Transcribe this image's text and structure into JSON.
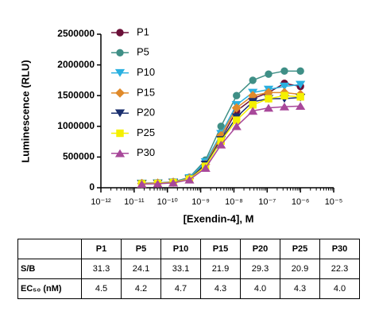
{
  "chart_data": {
    "type": "line",
    "xlabel": "[Exendin-4], M",
    "ylabel": "Luminescence (RLU)",
    "xscale": "log",
    "xlim": [
      1e-12,
      1e-05
    ],
    "xticks": [
      {
        "value": 1e-12,
        "label": "10⁻¹²"
      },
      {
        "value": 1e-11,
        "label": "10⁻¹¹"
      },
      {
        "value": 1e-10,
        "label": "10⁻¹⁰"
      },
      {
        "value": 1e-09,
        "label": "10⁻⁹"
      },
      {
        "value": 1e-08,
        "label": "10⁻⁸"
      },
      {
        "value": 1e-07,
        "label": "10⁻⁷"
      },
      {
        "value": 1e-06,
        "label": "10⁻⁶"
      },
      {
        "value": 1e-05,
        "label": "10⁻⁵"
      }
    ],
    "ylim": [
      0,
      2500000
    ],
    "yticks": [
      0,
      500000,
      1000000,
      1500000,
      2000000,
      2500000
    ],
    "legend": "top-left",
    "x": [
      1.7e-11,
      5.1e-11,
      1.5e-10,
      4.6e-10,
      1.4e-09,
      4.1e-09,
      1.2e-08,
      3.7e-08,
      1.1e-07,
      3.3e-07,
      1e-06
    ],
    "series": [
      {
        "name": "P1",
        "color": "#6b1038",
        "marker": "circle",
        "values": [
          70000,
          75000,
          90000,
          150000,
          400000,
          800000,
          1250000,
          1450000,
          1550000,
          1700000,
          1650000
        ]
      },
      {
        "name": "P5",
        "color": "#3f8f86",
        "marker": "circle",
        "values": [
          75000,
          80000,
          95000,
          170000,
          450000,
          1000000,
          1500000,
          1750000,
          1850000,
          1900000,
          1900000
        ]
      },
      {
        "name": "P10",
        "color": "#2ab0e0",
        "marker": "triangle-down",
        "values": [
          70000,
          75000,
          90000,
          160000,
          420000,
          880000,
          1350000,
          1550000,
          1600000,
          1650000,
          1680000
        ]
      },
      {
        "name": "P15",
        "color": "#e08a2a",
        "marker": "diamond",
        "values": [
          70000,
          75000,
          90000,
          150000,
          380000,
          850000,
          1300000,
          1500000,
          1550000,
          1550000,
          1520000
        ]
      },
      {
        "name": "P20",
        "color": "#1a2f6e",
        "marker": "triangle-down",
        "values": [
          65000,
          70000,
          85000,
          140000,
          380000,
          780000,
          1150000,
          1400000,
          1450000,
          1450000,
          1470000
        ]
      },
      {
        "name": "P25",
        "color": "#f5f000",
        "marker": "square",
        "values": [
          65000,
          70000,
          85000,
          140000,
          350000,
          760000,
          1100000,
          1350000,
          1450000,
          1500000,
          1480000
        ]
      },
      {
        "name": "P30",
        "color": "#a8489a",
        "marker": "triangle-up",
        "values": [
          60000,
          65000,
          80000,
          130000,
          320000,
          700000,
          1000000,
          1250000,
          1300000,
          1320000,
          1330000
        ]
      }
    ]
  },
  "table": {
    "columns": [
      "P1",
      "P5",
      "P10",
      "P15",
      "P20",
      "P25",
      "P30"
    ],
    "rows": [
      {
        "label": "S/B",
        "values": [
          "31.3",
          "24.1",
          "33.1",
          "21.9",
          "29.3",
          "20.9",
          "22.3"
        ]
      },
      {
        "label": "EC₅₀ (nM)",
        "values": [
          "4.5",
          "4.2",
          "4.7",
          "4.3",
          "4.0",
          "4.3",
          "4.0"
        ]
      }
    ]
  }
}
